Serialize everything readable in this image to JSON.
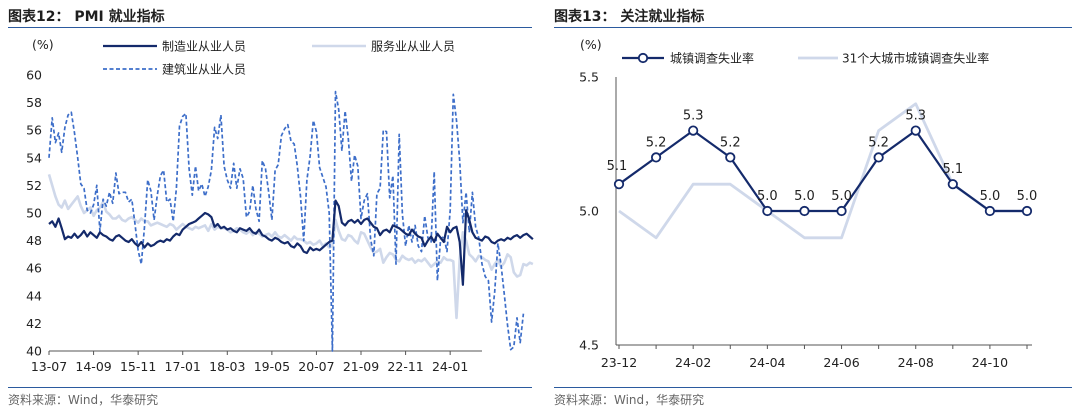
{
  "left_panel": {
    "title": "图表12：  PMI 就业指标",
    "source": "资料来源：Wind，华泰研究"
  },
  "right_panel": {
    "title": "图表13：  关注就业指标",
    "source": "资料来源：Wind，华泰研究"
  },
  "chart_data": [
    {
      "type": "line",
      "title": "PMI 就业指标",
      "ylabel": "(%)",
      "ylim": [
        40,
        60
      ],
      "yticks": [
        40,
        42,
        44,
        46,
        48,
        50,
        52,
        54,
        56,
        58,
        60
      ],
      "x_range": [
        "2013-07",
        "2024-11"
      ],
      "xticks": [
        "13-07",
        "14-09",
        "15-11",
        "17-01",
        "18-03",
        "19-05",
        "20-07",
        "21-09",
        "22-11",
        "24-01"
      ],
      "legend": "top",
      "colors": {
        "manufacturing": "#142a6b",
        "services": "#cfd8ea",
        "construction": "#3d6ec9"
      },
      "series": [
        {
          "name": "制造业从业人员",
          "style": "solid",
          "color": "#142a6b",
          "values": [
            49.2,
            49.4,
            49.0,
            49.6,
            48.9,
            48.1,
            48.3,
            48.2,
            48.5,
            48.2,
            48.4,
            48.7,
            48.3,
            48.6,
            48.4,
            48.2,
            48.6,
            48.4,
            48.3,
            48.1,
            48.0,
            48.3,
            48.4,
            48.2,
            48.0,
            47.9,
            48.1,
            47.8,
            47.6,
            47.9,
            47.5,
            47.8,
            47.6,
            47.7,
            47.9,
            48.0,
            47.9,
            48.1,
            48.0,
            48.3,
            48.5,
            48.4,
            48.8,
            49.0,
            49.2,
            49.3,
            49.4,
            49.6,
            49.8,
            50.0,
            49.9,
            49.7,
            49.0,
            49.2,
            48.9,
            49.0,
            48.8,
            48.9,
            48.7,
            48.6,
            48.9,
            48.8,
            48.7,
            48.9,
            48.6,
            48.5,
            48.8,
            48.4,
            48.3,
            48.1,
            48.0,
            48.2,
            48.1,
            47.9,
            47.8,
            47.9,
            47.6,
            47.5,
            47.8,
            47.6,
            47.2,
            47.1,
            47.5,
            47.3,
            47.4,
            47.3,
            47.5,
            47.7,
            47.9,
            48.0,
            50.9,
            50.5,
            49.3,
            49.1,
            49.4,
            49.5,
            49.3,
            49.5,
            49.2,
            49.5,
            49.6,
            49.3,
            49.0,
            48.9,
            48.4,
            48.7,
            48.8,
            48.6,
            49.1,
            49.0,
            48.9,
            48.7,
            48.5,
            48.4,
            48.8,
            48.5,
            48.3,
            48.2,
            47.6,
            48.0,
            48.3,
            47.9,
            48.5,
            48.2,
            47.9,
            49.0,
            48.6,
            48.9,
            49.0,
            47.9,
            44.8,
            50.2,
            49.5,
            48.6,
            48.2,
            48.1,
            48.0,
            48.3,
            48.2,
            47.9,
            47.8,
            48.0,
            48.1,
            48.0,
            48.2,
            48.1,
            48.3,
            48.4,
            48.2,
            48.4,
            48.5,
            48.3,
            48.1
          ]
        },
        {
          "name": "服务业从业人员",
          "style": "solid",
          "color": "#cfd8ea",
          "values": [
            52.8,
            52.0,
            51.2,
            50.6,
            50.4,
            50.9,
            50.3,
            50.6,
            50.9,
            51.2,
            50.5,
            50.0,
            50.2,
            50.4,
            49.8,
            50.2,
            50.4,
            50.8,
            50.1,
            49.9,
            49.6,
            49.6,
            49.8,
            49.5,
            49.4,
            49.6,
            49.7,
            49.5,
            49.3,
            49.6,
            49.4,
            49.4,
            49.1,
            49.2,
            49.3,
            49.2,
            49.1,
            49.0,
            49.2,
            49.1,
            48.8,
            49.0,
            49.2,
            49.0,
            48.9,
            48.8,
            49.0,
            48.9,
            49.0,
            49.1,
            48.7,
            49.2,
            48.8,
            49.0,
            48.9,
            48.9,
            48.8,
            48.6,
            48.7,
            48.9,
            48.8,
            48.6,
            48.5,
            48.7,
            48.4,
            48.6,
            48.5,
            48.3,
            48.4,
            48.5,
            48.3,
            48.6,
            48.3,
            48.2,
            48.4,
            48.2,
            48.0,
            48.3,
            48.1,
            48.1,
            48.0,
            47.8,
            47.9,
            47.7,
            47.8,
            48.0,
            47.6,
            47.8,
            47.5,
            47.6,
            49.5,
            48.7,
            48.1,
            48.0,
            48.4,
            48.3,
            48.0,
            47.8,
            48.6,
            48.5,
            48.0,
            47.5,
            47.1,
            47.2,
            47.4,
            46.4,
            46.8,
            47.1,
            47.0,
            46.6,
            46.5,
            46.9,
            46.7,
            46.6,
            46.7,
            46.4,
            46.6,
            46.5,
            46.7,
            46.4,
            46.1,
            46.3,
            46.5,
            46.4,
            46.8,
            46.6,
            46.6,
            46.5,
            42.4,
            46.7,
            48.6,
            48.0,
            47.0,
            46.8,
            46.5,
            46.9,
            46.8,
            46.6,
            46.5,
            45.9,
            46.3,
            46.6,
            46.1,
            46.4,
            47.0,
            46.8,
            45.7,
            45.4,
            45.5,
            46.3,
            46.2,
            46.4,
            46.3
          ]
        },
        {
          "name": "建筑业从业人员",
          "style": "dashed",
          "color": "#3d6ec9",
          "values": [
            54.0,
            56.9,
            55.1,
            55.8,
            54.4,
            56.2,
            57.1,
            57.3,
            55.8,
            54.0,
            52.1,
            51.8,
            50.2,
            50.0,
            50.6,
            52.0,
            48.7,
            51.0,
            50.5,
            51.5,
            50.7,
            52.9,
            51.4,
            51.5,
            51.5,
            50.8,
            51.0,
            49.2,
            47.3,
            46.3,
            49.0,
            52.4,
            51.6,
            49.5,
            51.3,
            52.7,
            53.1,
            50.8,
            51.0,
            49.4,
            51.8,
            56.3,
            57.0,
            57.2,
            53.2,
            51.3,
            53.4,
            51.6,
            52.1,
            51.2,
            51.9,
            53.1,
            56.2,
            55.4,
            57.1,
            53.4,
            52.4,
            51.8,
            53.6,
            51.8,
            53.2,
            52.5,
            49.7,
            50.1,
            52.0,
            50.3,
            49.4,
            53.8,
            53.2,
            51.5,
            49.5,
            53.1,
            53.5,
            55.6,
            56.1,
            56.4,
            55.2,
            55.0,
            53.4,
            51.2,
            48.0,
            52.4,
            54.1,
            56.7,
            55.9,
            53.3,
            52.6,
            51.9,
            50.0,
            40.0,
            58.8,
            57.5,
            54.5,
            57.4,
            55.4,
            52.3,
            54.2,
            53.4,
            49.6,
            50.9,
            51.4,
            48.1,
            46.9,
            51.4,
            51.8,
            56.0,
            55.9,
            51.1,
            52.7,
            46.3,
            55.7,
            49.9,
            47.6,
            49.1,
            47.9,
            49.1,
            47.6,
            47.2,
            49.8,
            48.2,
            47.9,
            53.0,
            45.1,
            48.1,
            48.3,
            47.2,
            50.2,
            58.6,
            56.7,
            53.8,
            49.3,
            51.5,
            48.6,
            51.5,
            49.0,
            48.2,
            46.3,
            45.4,
            45.1,
            42.1,
            44.3,
            47.8,
            46.2,
            44.1,
            41.9,
            40.1,
            40.3,
            42.4,
            40.6,
            42.7
          ]
        }
      ]
    },
    {
      "type": "line",
      "title": "关注就业指标",
      "ylabel": "(%)",
      "ylim": [
        4.5,
        5.5
      ],
      "yticks": [
        4.5,
        5.0,
        5.5
      ],
      "categories": [
        "23-12",
        "24-01",
        "24-02",
        "24-03",
        "24-04",
        "24-05",
        "24-06",
        "24-07",
        "24-08",
        "24-09",
        "24-10",
        "24-11"
      ],
      "xtick_labels": [
        "23-12",
        "24-02",
        "24-04",
        "24-06",
        "24-08",
        "24-10"
      ],
      "legend": "top",
      "colors": {
        "urban": "#142a6b",
        "cities31": "#cfd8ea"
      },
      "series": [
        {
          "name": "城镇调查失业率",
          "color": "#142a6b",
          "markers": true,
          "values": [
            5.1,
            5.2,
            5.3,
            5.2,
            5.0,
            5.0,
            5.0,
            5.2,
            5.3,
            5.1,
            5.0,
            5.0
          ],
          "data_labels": [
            "5.1",
            "5.2",
            "5.3",
            "5.2",
            "5.0",
            "5.0",
            "5.0",
            "5.2",
            "5.3",
            "5.1",
            "5.0",
            "5.0"
          ]
        },
        {
          "name": "31个大城市城镇调查失业率",
          "color": "#cfd8ea",
          "markers": false,
          "values": [
            5.0,
            4.9,
            5.1,
            5.1,
            5.0,
            4.9,
            4.9,
            5.3,
            5.4,
            5.1,
            5.0,
            5.0
          ]
        }
      ]
    }
  ]
}
